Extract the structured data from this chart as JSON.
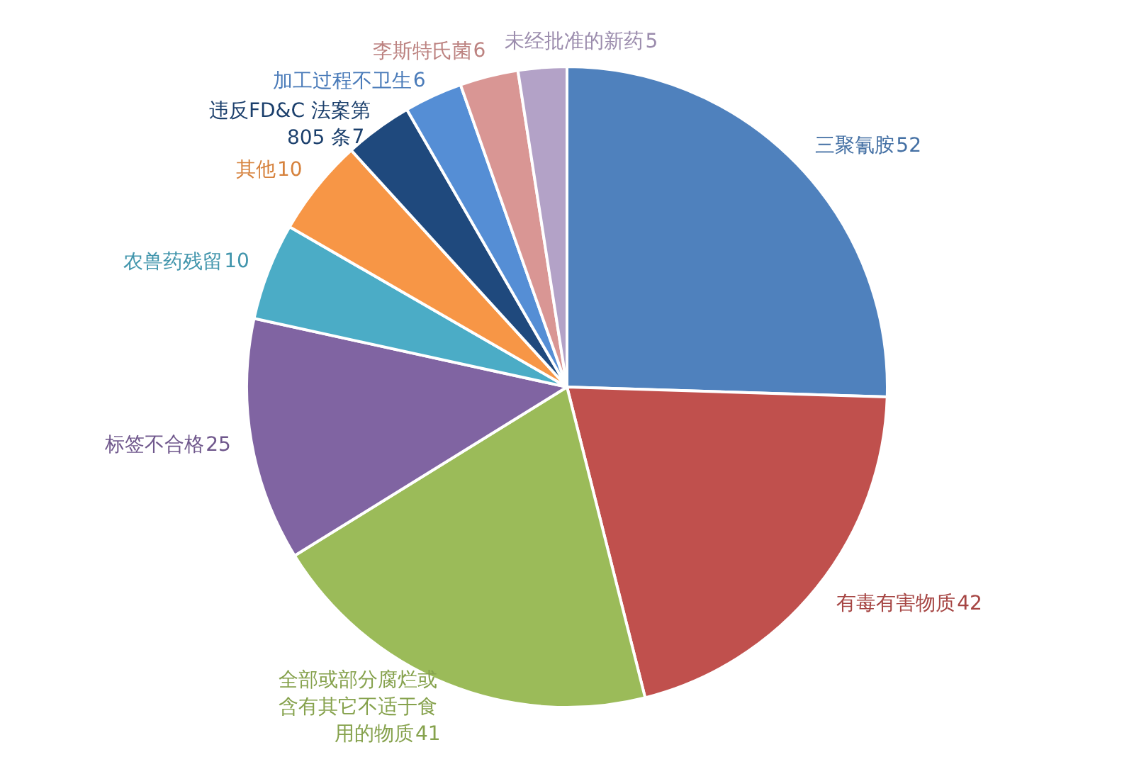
{
  "chart_data": {
    "type": "pie",
    "categories": [
      "三聚氰胺",
      "有毒有害物质",
      "全部或部分腐烂或含有其它不适于食用的物质",
      "标签不合格",
      "农兽药残留",
      "其他",
      "违反FD&C 法案第805 条",
      "加工过程不卫生",
      "李斯特氏菌",
      "未经批准的新药"
    ],
    "values": [
      52,
      42,
      41,
      25,
      10,
      10,
      7,
      6,
      6,
      5
    ],
    "colors": [
      "#4f81bd",
      "#c0504d",
      "#9bbb59",
      "#8064a2",
      "#4bacc6",
      "#f79646",
      "#1f497d",
      "#558ed5",
      "#d99694",
      "#b3a2c7"
    ],
    "data_labels": true
  }
}
